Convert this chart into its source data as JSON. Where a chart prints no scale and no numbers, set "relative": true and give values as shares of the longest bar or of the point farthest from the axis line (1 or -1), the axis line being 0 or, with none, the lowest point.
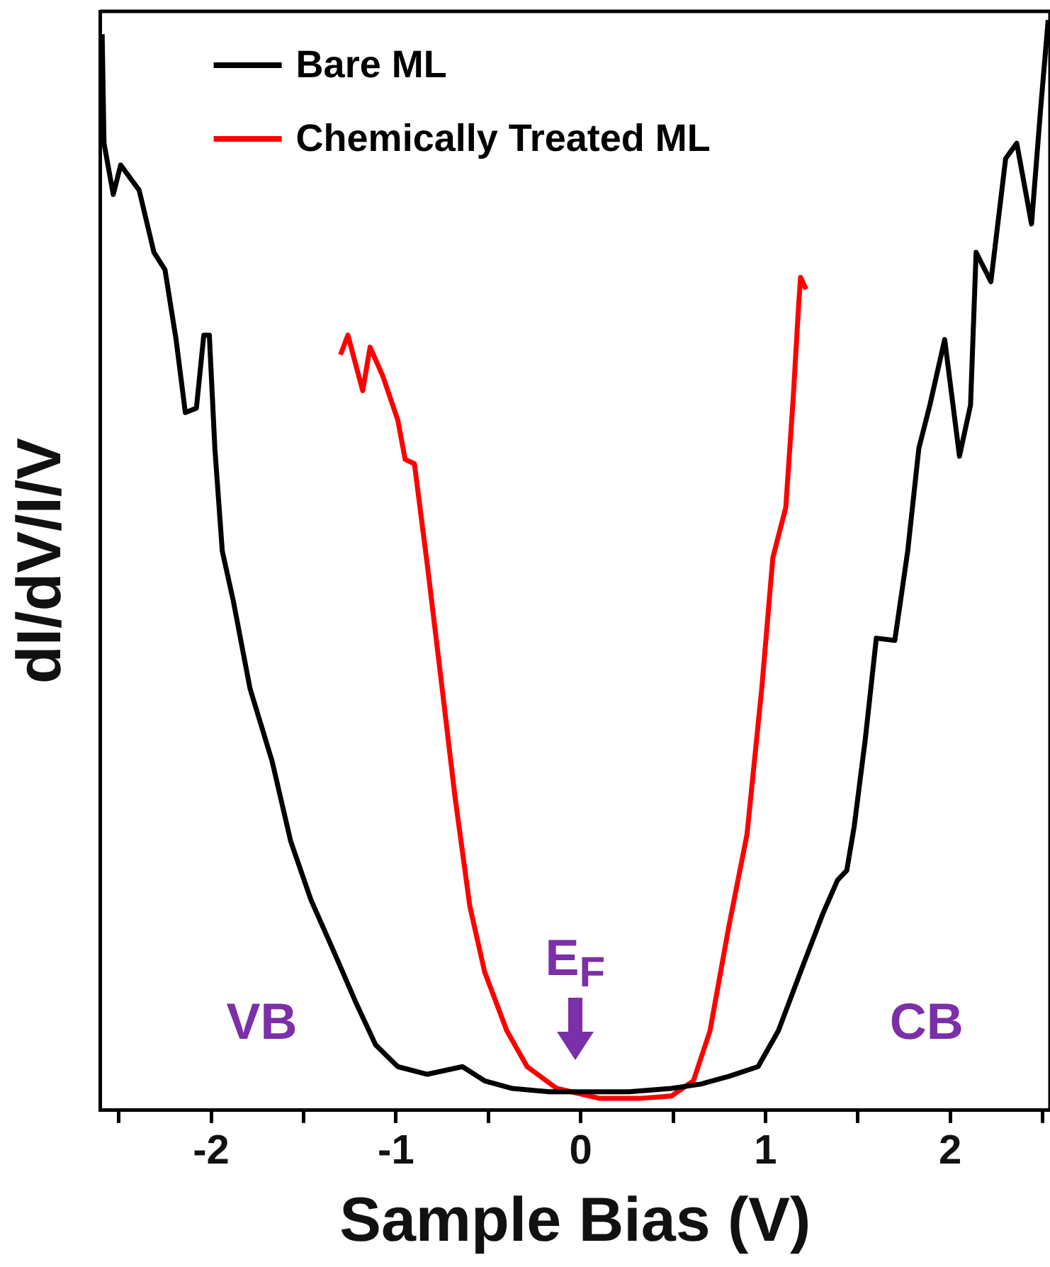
{
  "chart_data": {
    "type": "line",
    "xlabel": "Sample Bias (V)",
    "ylabel": "dI/dV/I/V",
    "relative": true,
    "legend": "top left",
    "grid": false,
    "marker": "none",
    "line_style": "solid",
    "xlim": [
      -2.6,
      2.54
    ],
    "xticks": [
      {
        "value": -2.5,
        "label": null
      },
      -2,
      {
        "value": -1.5,
        "label": null
      },
      -1,
      {
        "value": -0.5,
        "label": null
      },
      0,
      {
        "value": 0.5,
        "label": null
      },
      1,
      {
        "value": 1.5,
        "label": null
      },
      2,
      {
        "value": 2.5,
        "label": null
      }
    ],
    "series": [
      {
        "name": "Bare ML",
        "color": "#000000",
        "x": [
          -2.59,
          -2.58,
          -2.53,
          -2.49,
          -2.39,
          -2.31,
          -2.25,
          -2.19,
          -2.14,
          -2.08,
          -2.04,
          -2.01,
          -1.98,
          -1.94,
          -1.88,
          -1.79,
          -1.67,
          -1.57,
          -1.46,
          -1.34,
          -1.22,
          -1.11,
          -0.99,
          -0.83,
          -0.64,
          -0.52,
          -0.37,
          -0.17,
          0.0,
          0.26,
          0.49,
          0.65,
          0.8,
          0.96,
          1.07,
          1.19,
          1.31,
          1.39,
          1.44,
          1.48,
          1.54,
          1.6,
          1.7,
          1.77,
          1.83,
          1.89,
          1.97,
          2.05,
          2.11,
          2.14,
          2.22,
          2.3,
          2.36,
          2.44,
          2.49,
          2.53
        ],
        "values": [
          0.987,
          0.887,
          0.84,
          0.867,
          0.844,
          0.787,
          0.771,
          0.707,
          0.64,
          0.644,
          0.711,
          0.711,
          0.607,
          0.513,
          0.467,
          0.387,
          0.32,
          0.247,
          0.193,
          0.147,
          0.1,
          0.06,
          0.04,
          0.033,
          0.04,
          0.027,
          0.02,
          0.017,
          0.017,
          0.017,
          0.02,
          0.024,
          0.031,
          0.04,
          0.073,
          0.127,
          0.18,
          0.211,
          0.22,
          0.26,
          0.34,
          0.433,
          0.431,
          0.513,
          0.607,
          0.647,
          0.707,
          0.6,
          0.647,
          0.787,
          0.76,
          0.873,
          0.887,
          0.813,
          0.92,
          1.0
        ]
      },
      {
        "name": "Chemically Treated ML",
        "color": "#ff0000",
        "x": [
          -1.3,
          -1.26,
          -1.18,
          -1.14,
          -1.07,
          -0.99,
          -0.95,
          -0.9,
          -0.83,
          -0.75,
          -0.68,
          -0.6,
          -0.52,
          -0.4,
          -0.29,
          -0.13,
          0.1,
          0.33,
          0.49,
          0.61,
          0.7,
          0.8,
          0.9,
          0.98,
          1.04,
          1.11,
          1.15,
          1.18,
          1.19,
          1.22
        ],
        "values": [
          0.693,
          0.711,
          0.66,
          0.7,
          0.673,
          0.633,
          0.597,
          0.593,
          0.5,
          0.387,
          0.287,
          0.187,
          0.127,
          0.073,
          0.04,
          0.02,
          0.011,
          0.011,
          0.013,
          0.027,
          0.073,
          0.167,
          0.253,
          0.387,
          0.507,
          0.553,
          0.653,
          0.74,
          0.764,
          0.753
        ]
      }
    ],
    "annotations": [
      "VB",
      "CB",
      "E$_{F}$"
    ]
  }
}
